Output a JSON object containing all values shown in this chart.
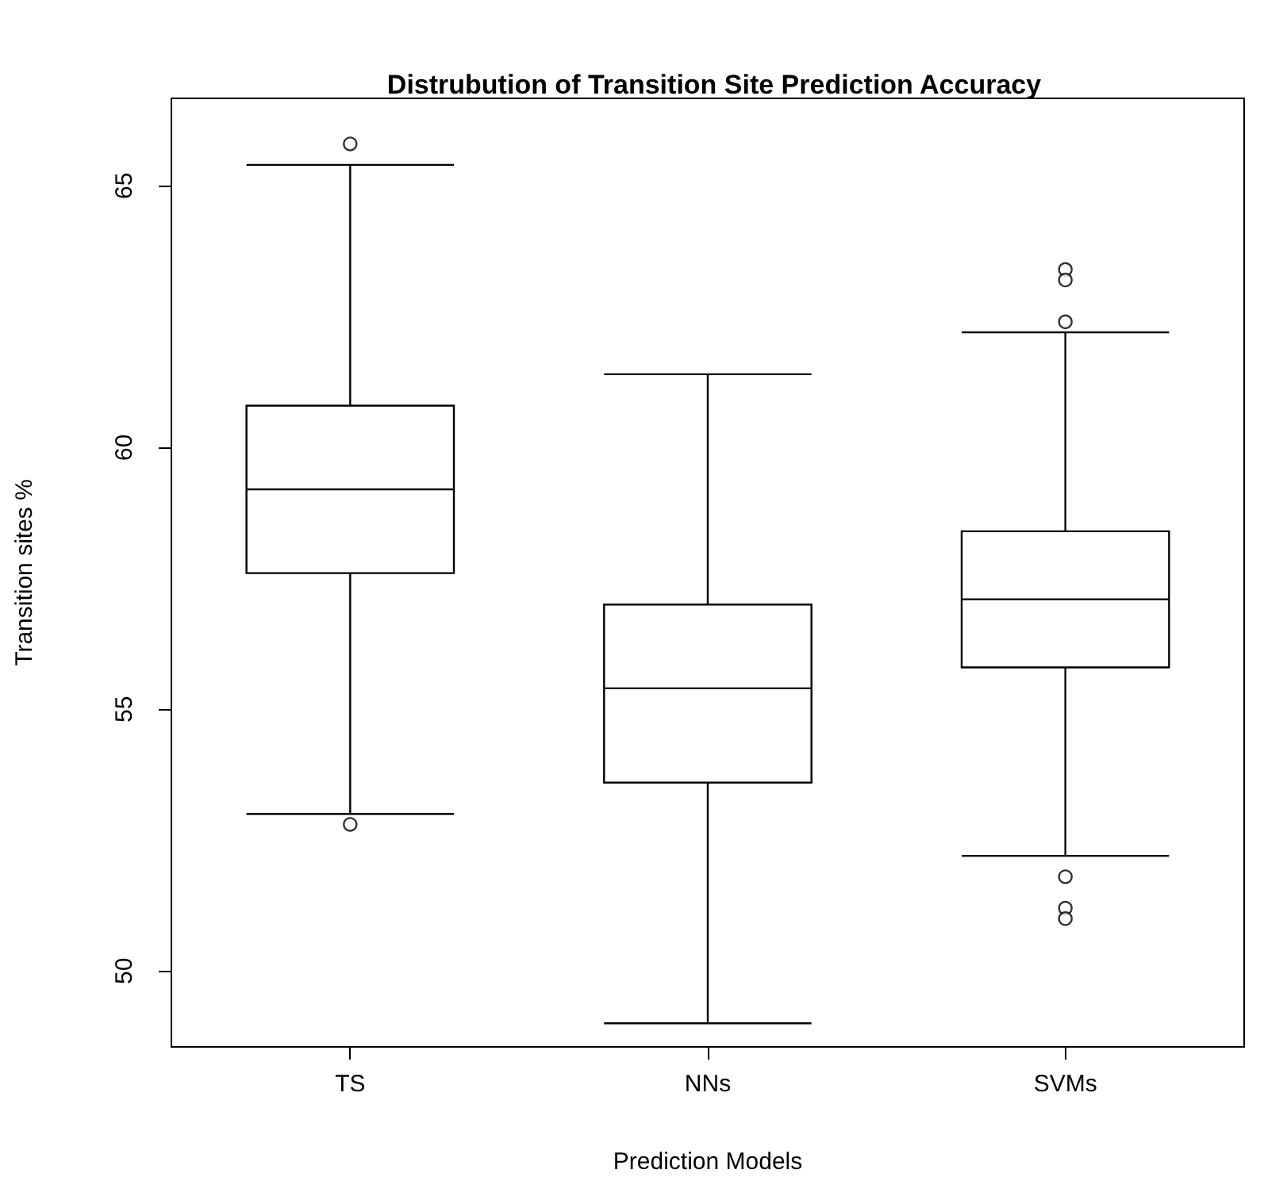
{
  "chart_data": {
    "type": "box",
    "title": "Distrubution of Transition Site Prediction Accuracy",
    "xlabel": "Prediction Models",
    "ylabel": "Transition sites %",
    "categories": [
      "TS",
      "NNs",
      "SVMs"
    ],
    "boxes": [
      {
        "low": 53.0,
        "q1": 57.6,
        "median": 59.2,
        "q3": 60.8,
        "high": 65.4,
        "outliers": [
          65.8,
          52.8
        ]
      },
      {
        "low": 49.0,
        "q1": 53.6,
        "median": 55.4,
        "q3": 57.0,
        "high": 61.4
      },
      {
        "low": 52.2,
        "q1": 55.8,
        "median": 57.1,
        "q3": 58.4,
        "high": 62.2,
        "outliers": [
          63.4,
          63.2,
          62.4,
          51.8,
          51.2,
          51.0
        ]
      }
    ],
    "color": "#000000",
    "ylim": [
      48.55,
      66.67
    ],
    "yticks": [
      50,
      55,
      60,
      65
    ],
    "grid": false
  }
}
